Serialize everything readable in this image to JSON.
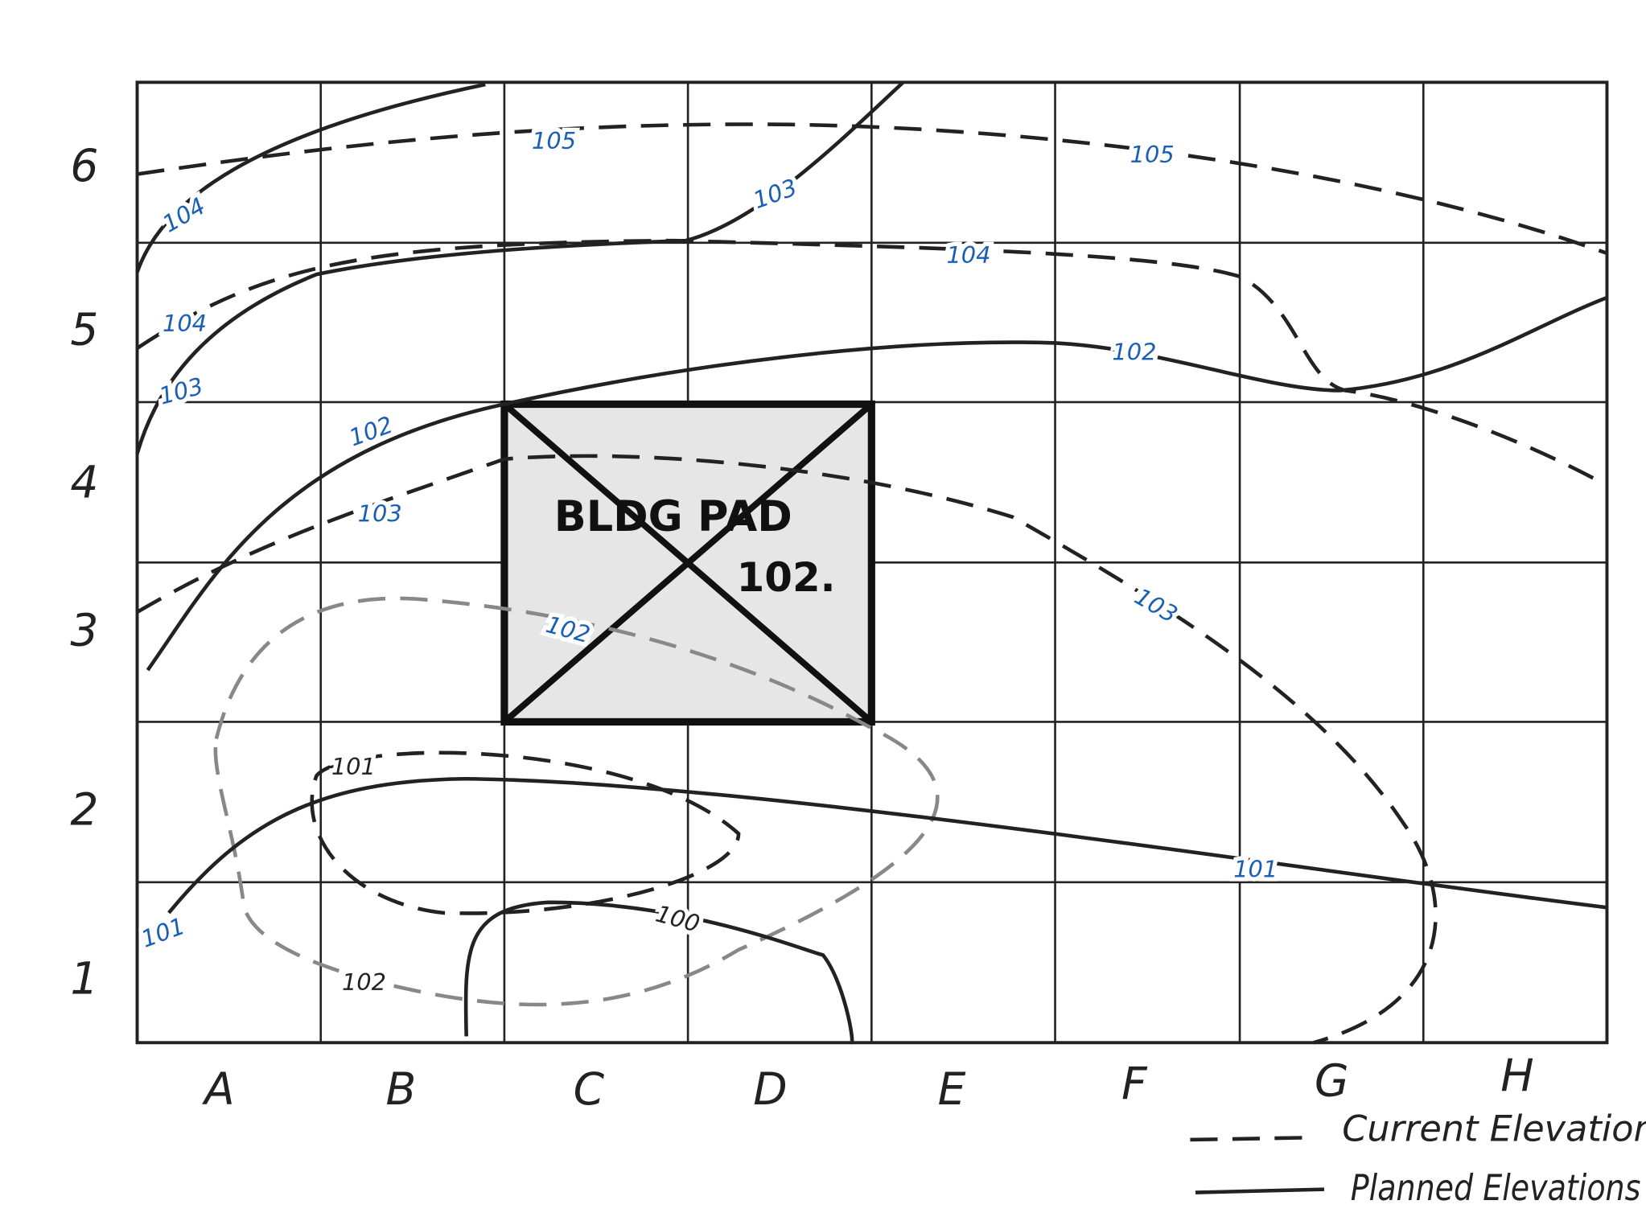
{
  "grid": {
    "row_labels": [
      "6",
      "5",
      "4",
      "3",
      "2",
      "1"
    ],
    "column_labels": [
      "A",
      "B",
      "C",
      "D",
      "E",
      "F",
      "G",
      "H"
    ]
  },
  "building_pad": {
    "label": "BLDG PAD",
    "elevation": "102."
  },
  "contour_labels": [
    "105",
    "105",
    "104",
    "103",
    "104",
    "104",
    "103",
    "102",
    "102",
    "103",
    "102",
    "103",
    "101",
    "101",
    "101",
    "100",
    "102"
  ],
  "legend": {
    "current": "Current Elevations",
    "planned": "Planned Elevations"
  }
}
